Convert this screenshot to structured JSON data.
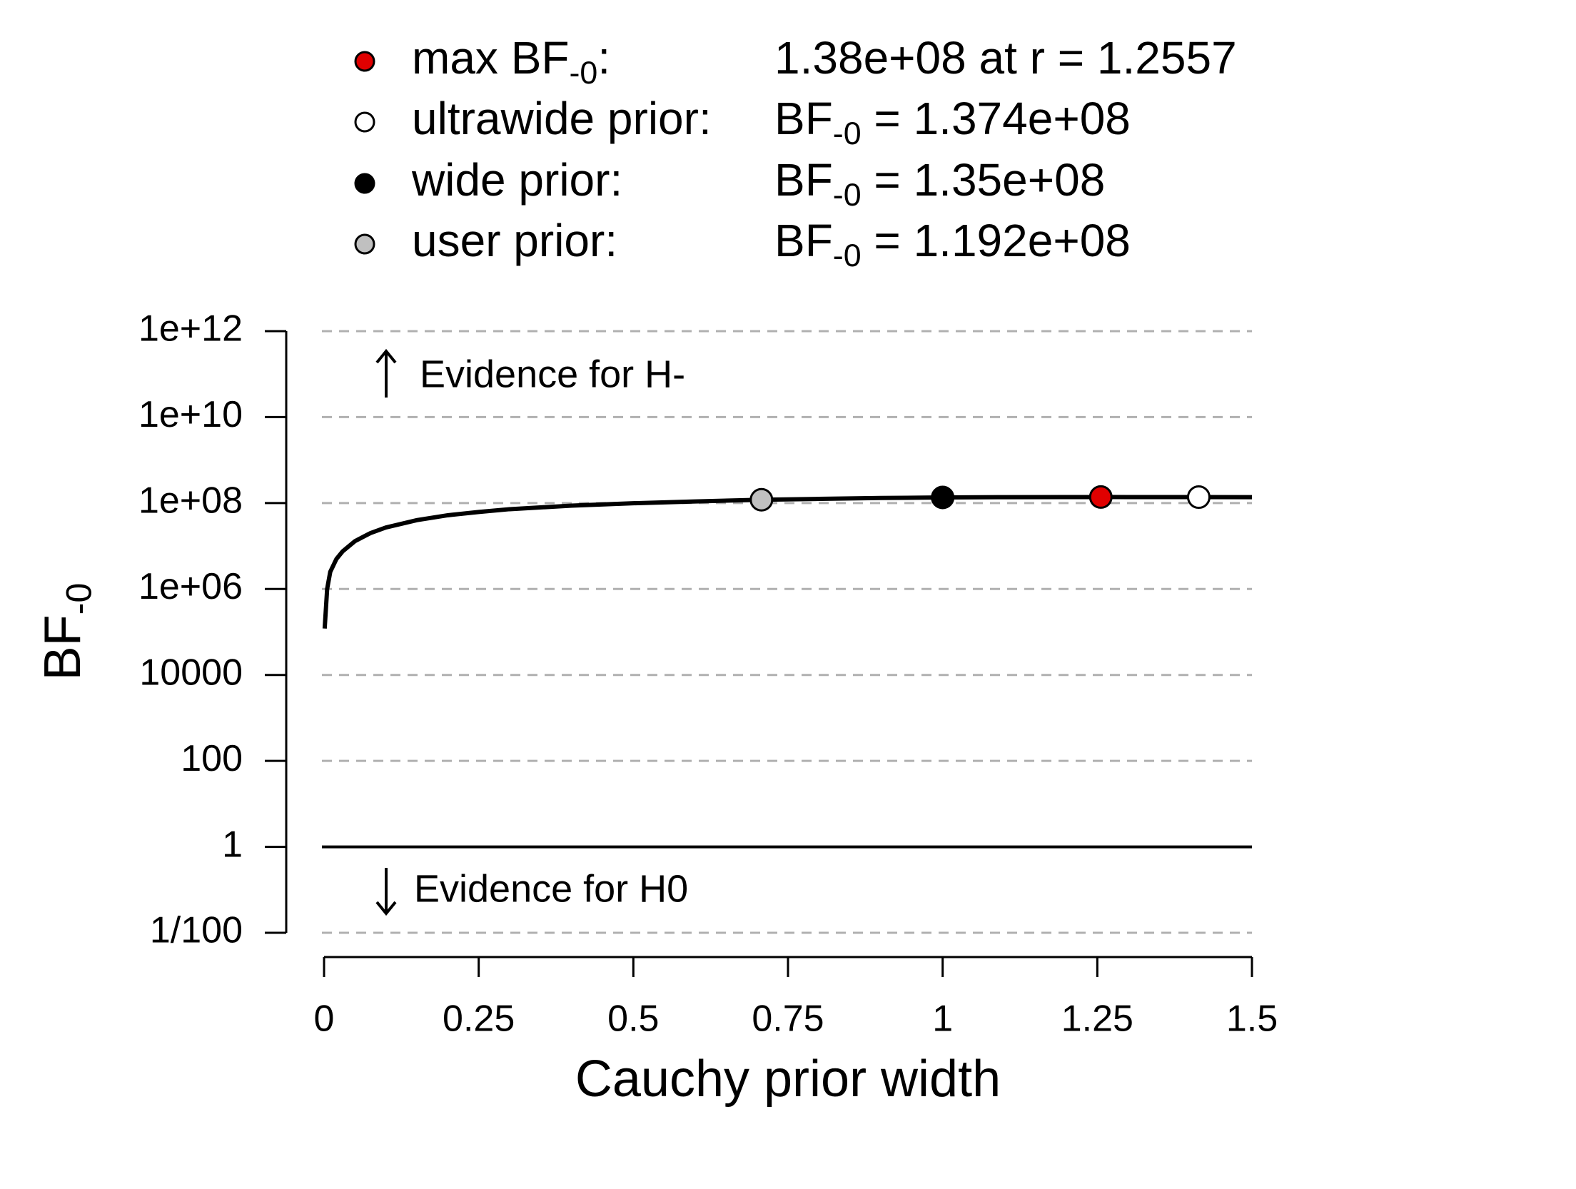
{
  "chart_data": {
    "type": "line",
    "x_label": "Cauchy prior width",
    "y_label": [
      {
        "text": "BF"
      },
      {
        "sub": "-0"
      }
    ],
    "annotations": [
      "Evidence for H-",
      "Evidence for H0"
    ],
    "log_y": true,
    "grid": true,
    "reference_line": 1,
    "color": "#000000",
    "xlim": [
      0,
      1.5
    ],
    "xticks": [
      0,
      0.25,
      0.5,
      0.75,
      1,
      1.25,
      1.5
    ],
    "ylim": [
      0.01,
      1000000000000.0
    ],
    "yticks": [
      {
        "value": 0.01,
        "label": "1/100"
      },
      1,
      100,
      10000,
      {
        "value": 1000000.0,
        "label": "1e+06"
      },
      {
        "value": 100000000.0,
        "label": "1e+08"
      },
      {
        "value": 10000000000.0,
        "label": "1e+10"
      },
      {
        "value": 1000000000000.0,
        "label": "1e+12"
      }
    ],
    "x": [
      0.001,
      0.005,
      0.01,
      0.02,
      0.03,
      0.05,
      0.075,
      0.1,
      0.15,
      0.2,
      0.25,
      0.3,
      0.4,
      0.5,
      0.6,
      0.7071,
      0.8,
      0.9,
      1,
      1.1,
      1.2,
      1.2557,
      1.3,
      1.414,
      1.5
    ],
    "values": [
      120000,
      1000000,
      2500000,
      5000000,
      7500000,
      13000000,
      20000000,
      27000000,
      40000000,
      52000000,
      62000000,
      72000000,
      87000000,
      99000000,
      109000000,
      119200000,
      125000000,
      131000000,
      135000000,
      137000000,
      137800000,
      138000000,
      137900000,
      137400000,
      137000000
    ],
    "points": [
      {
        "label": [
          {
            "text": "max BF"
          },
          {
            "sub": "-0"
          },
          {
            "text": ":"
          }
        ],
        "value_label": [
          {
            "text": "1.38e+08 at r = 1.2557"
          }
        ],
        "x": 1.2557,
        "y": 138000000,
        "color": "#e00000"
      },
      {
        "label": [
          {
            "text": "ultrawide prior:"
          }
        ],
        "value_label": [
          {
            "text": "BF"
          },
          {
            "sub": "-0"
          },
          {
            "text": " = 1.374e+08"
          }
        ],
        "x": 1.414,
        "y": 137400000,
        "color": "#ffffff"
      },
      {
        "label": [
          {
            "text": "wide prior:"
          }
        ],
        "value_label": [
          {
            "text": "BF"
          },
          {
            "sub": "-0"
          },
          {
            "text": " = 1.35e+08"
          }
        ],
        "x": 1,
        "y": 135000000,
        "color": "#000000"
      },
      {
        "label": [
          {
            "text": "user prior:"
          }
        ],
        "value_label": [
          {
            "text": "BF"
          },
          {
            "sub": "-0"
          },
          {
            "text": " = 1.192e+08"
          }
        ],
        "x": 0.7071,
        "y": 119200000,
        "color": "#c0c0c0"
      }
    ]
  }
}
